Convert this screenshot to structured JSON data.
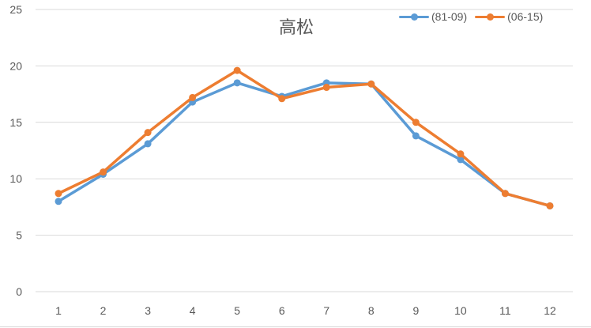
{
  "chart_data": {
    "type": "line",
    "title": "高松",
    "xlabel": "",
    "ylabel": "",
    "categories": [
      "1",
      "2",
      "3",
      "4",
      "5",
      "6",
      "7",
      "8",
      "9",
      "10",
      "11",
      "12"
    ],
    "series": [
      {
        "name": "(81-09)",
        "color": "#5B9BD5",
        "values": [
          8.0,
          10.4,
          13.1,
          16.8,
          18.5,
          17.3,
          18.5,
          18.4,
          13.8,
          11.7,
          8.7,
          7.6
        ]
      },
      {
        "name": "(06-15)",
        "color": "#ED7D31",
        "values": [
          8.7,
          10.6,
          14.1,
          17.2,
          19.6,
          17.1,
          18.1,
          18.4,
          15.0,
          12.2,
          8.7,
          7.6
        ]
      }
    ],
    "ylim": [
      0,
      25
    ],
    "yticks": [
      "0",
      "5",
      "10",
      "15",
      "20",
      "25"
    ],
    "grid": true,
    "legend_position": "top-right"
  },
  "colors": {
    "gridline": "#D9D9D9",
    "text": "#595959",
    "background": "#FFFFFF"
  }
}
